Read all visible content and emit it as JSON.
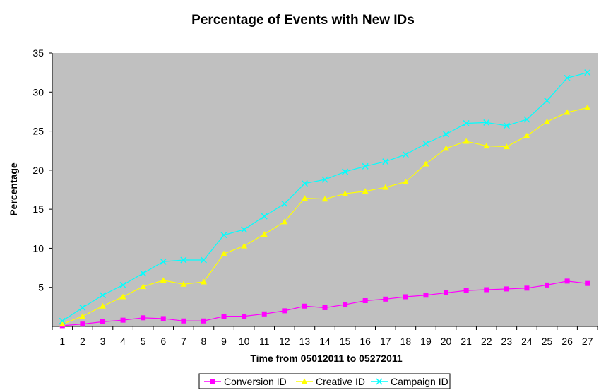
{
  "chart_data": {
    "type": "line",
    "title": "Percentage of Events with New IDs",
    "xlabel": "Time from 05012011 to 05272011",
    "ylabel": "Percentage",
    "x": [
      "1",
      "2",
      "3",
      "4",
      "5",
      "6",
      "7",
      "8",
      "9",
      "10",
      "11",
      "12",
      "13",
      "14",
      "15",
      "16",
      "17",
      "18",
      "19",
      "20",
      "21",
      "22",
      "23",
      "24",
      "25",
      "26",
      "27"
    ],
    "ylim": [
      0,
      35
    ],
    "yticks": [
      "5",
      "10",
      "15",
      "20",
      "25",
      "30",
      "35"
    ],
    "grid": false,
    "plot_background": "#c0c0c0",
    "legend_position": "bottom",
    "series": [
      {
        "name": "Conversion ID",
        "color": "#ff00ff",
        "marker": "square",
        "values": [
          0.1,
          0.3,
          0.6,
          0.8,
          1.1,
          1.0,
          0.7,
          0.7,
          1.3,
          1.3,
          1.6,
          2.0,
          2.6,
          2.4,
          2.8,
          3.3,
          3.5,
          3.8,
          4.0,
          4.3,
          4.6,
          4.7,
          4.8,
          4.9,
          5.3,
          5.8,
          5.5
        ]
      },
      {
        "name": "Creative ID",
        "color": "#ffff00",
        "marker": "triangle",
        "values": [
          0.3,
          1.3,
          2.6,
          3.8,
          5.1,
          5.9,
          5.4,
          5.7,
          9.3,
          10.3,
          11.8,
          13.4,
          16.4,
          16.3,
          17.0,
          17.3,
          17.8,
          18.5,
          20.8,
          22.8,
          23.7,
          23.1,
          23.0,
          24.4,
          26.2,
          27.4,
          28.0
        ]
      },
      {
        "name": "Campaign ID",
        "color": "#00ffff",
        "marker": "x",
        "values": [
          0.7,
          2.4,
          4.0,
          5.3,
          6.8,
          8.3,
          8.5,
          8.5,
          11.7,
          12.4,
          14.1,
          15.7,
          18.3,
          18.8,
          19.8,
          20.5,
          21.1,
          22.0,
          23.4,
          24.6,
          26.0,
          26.1,
          25.7,
          26.5,
          28.9,
          31.8,
          32.5
        ]
      }
    ]
  }
}
